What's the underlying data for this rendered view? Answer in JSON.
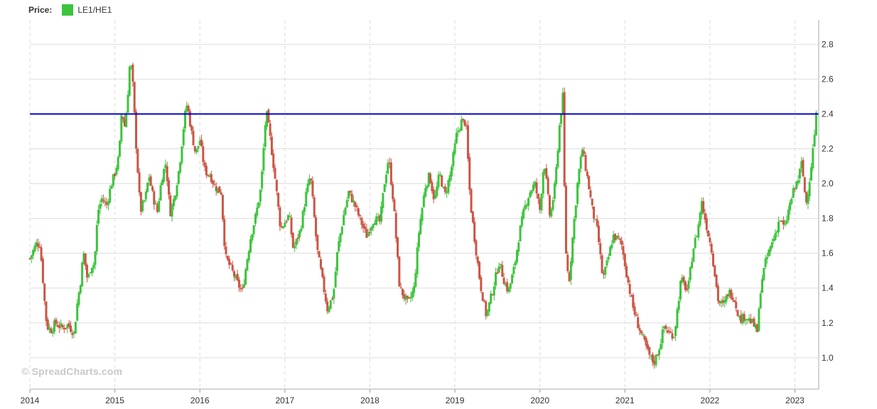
{
  "legend": {
    "title": "Price:",
    "series_label": "LE1/HE1"
  },
  "watermark": "© SpreadCharts.com",
  "colors": {
    "up": "#3cc43c",
    "down": "#cc5544",
    "reference_line": "#0000cc",
    "grid": "#dddddd"
  },
  "chart_data": {
    "type": "candlestick",
    "title": "",
    "xlabel": "",
    "ylabel": "",
    "series_name": "LE1/HE1",
    "x_ticks": [
      "2014",
      "2015",
      "2016",
      "2017",
      "2018",
      "2019",
      "2020",
      "2021",
      "2022",
      "2023"
    ],
    "y_ticks": [
      "1.0",
      "1.2",
      "1.4",
      "1.6",
      "1.8",
      "2.0",
      "2.2",
      "2.4",
      "2.6",
      "2.8"
    ],
    "ylim": [
      0.82,
      2.94
    ],
    "xlim": [
      2014.0,
      2023.28
    ],
    "reference_line": 2.4,
    "grid": true,
    "y_axis_side": "right",
    "points": [
      [
        2014.0,
        1.57
      ],
      [
        2014.08,
        1.66
      ],
      [
        2014.12,
        1.65
      ],
      [
        2014.15,
        1.47
      ],
      [
        2014.18,
        1.28
      ],
      [
        2014.2,
        1.18
      ],
      [
        2014.25,
        1.16
      ],
      [
        2014.3,
        1.2
      ],
      [
        2014.38,
        1.17
      ],
      [
        2014.45,
        1.19
      ],
      [
        2014.52,
        1.14
      ],
      [
        2014.56,
        1.32
      ],
      [
        2014.6,
        1.45
      ],
      [
        2014.63,
        1.61
      ],
      [
        2014.68,
        1.44
      ],
      [
        2014.72,
        1.53
      ],
      [
        2014.76,
        1.54
      ],
      [
        2014.8,
        1.84
      ],
      [
        2014.85,
        1.92
      ],
      [
        2014.9,
        1.87
      ],
      [
        2014.96,
        2.0
      ],
      [
        2015.0,
        2.06
      ],
      [
        2015.05,
        2.16
      ],
      [
        2015.08,
        2.42
      ],
      [
        2015.12,
        2.32
      ],
      [
        2015.15,
        2.5
      ],
      [
        2015.18,
        2.72
      ],
      [
        2015.21,
        2.58
      ],
      [
        2015.25,
        2.22
      ],
      [
        2015.3,
        1.84
      ],
      [
        2015.36,
        1.92
      ],
      [
        2015.4,
        2.05
      ],
      [
        2015.45,
        1.92
      ],
      [
        2015.5,
        1.84
      ],
      [
        2015.55,
        2.03
      ],
      [
        2015.6,
        2.12
      ],
      [
        2015.65,
        1.83
      ],
      [
        2015.7,
        1.92
      ],
      [
        2015.76,
        2.1
      ],
      [
        2015.82,
        2.38
      ],
      [
        2015.85,
        2.46
      ],
      [
        2015.9,
        2.3
      ],
      [
        2015.95,
        2.17
      ],
      [
        2016.0,
        2.25
      ],
      [
        2016.06,
        2.07
      ],
      [
        2016.12,
        2.05
      ],
      [
        2016.18,
        1.98
      ],
      [
        2016.25,
        1.95
      ],
      [
        2016.3,
        1.58
      ],
      [
        2016.36,
        1.52
      ],
      [
        2016.45,
        1.42
      ],
      [
        2016.5,
        1.38
      ],
      [
        2016.56,
        1.58
      ],
      [
        2016.6,
        1.7
      ],
      [
        2016.66,
        1.82
      ],
      [
        2016.72,
        1.98
      ],
      [
        2016.78,
        2.42
      ],
      [
        2016.83,
        2.25
      ],
      [
        2016.88,
        2.05
      ],
      [
        2016.95,
        1.74
      ],
      [
        2017.05,
        1.82
      ],
      [
        2017.1,
        1.62
      ],
      [
        2017.18,
        1.73
      ],
      [
        2017.25,
        1.94
      ],
      [
        2017.3,
        2.05
      ],
      [
        2017.38,
        1.62
      ],
      [
        2017.45,
        1.42
      ],
      [
        2017.5,
        1.28
      ],
      [
        2017.57,
        1.36
      ],
      [
        2017.62,
        1.62
      ],
      [
        2017.7,
        1.84
      ],
      [
        2017.75,
        1.95
      ],
      [
        2017.82,
        1.88
      ],
      [
        2017.88,
        1.8
      ],
      [
        2017.96,
        1.7
      ],
      [
        2018.05,
        1.8
      ],
      [
        2018.12,
        1.78
      ],
      [
        2018.17,
        2.0
      ],
      [
        2018.22,
        2.15
      ],
      [
        2018.28,
        1.88
      ],
      [
        2018.35,
        1.4
      ],
      [
        2018.45,
        1.31
      ],
      [
        2018.52,
        1.4
      ],
      [
        2018.58,
        1.74
      ],
      [
        2018.65,
        1.98
      ],
      [
        2018.7,
        2.05
      ],
      [
        2018.76,
        1.9
      ],
      [
        2018.82,
        2.06
      ],
      [
        2018.88,
        1.93
      ],
      [
        2018.95,
        2.06
      ],
      [
        2019.02,
        2.28
      ],
      [
        2019.08,
        2.36
      ],
      [
        2019.13,
        2.35
      ],
      [
        2019.18,
        1.9
      ],
      [
        2019.24,
        1.65
      ],
      [
        2019.3,
        1.42
      ],
      [
        2019.37,
        1.24
      ],
      [
        2019.45,
        1.4
      ],
      [
        2019.52,
        1.55
      ],
      [
        2019.58,
        1.44
      ],
      [
        2019.63,
        1.38
      ],
      [
        2019.7,
        1.52
      ],
      [
        2019.76,
        1.72
      ],
      [
        2019.82,
        1.86
      ],
      [
        2019.88,
        1.95
      ],
      [
        2019.94,
        2.0
      ],
      [
        2020.0,
        1.85
      ],
      [
        2020.05,
        2.14
      ],
      [
        2020.12,
        1.8
      ],
      [
        2020.18,
        2.0
      ],
      [
        2020.23,
        2.33
      ],
      [
        2020.27,
        2.5
      ],
      [
        2020.3,
        1.65
      ],
      [
        2020.34,
        1.42
      ],
      [
        2020.39,
        1.72
      ],
      [
        2020.45,
        2.04
      ],
      [
        2020.5,
        2.2
      ],
      [
        2020.56,
        2.03
      ],
      [
        2020.62,
        1.84
      ],
      [
        2020.68,
        1.72
      ],
      [
        2020.74,
        1.45
      ],
      [
        2020.8,
        1.56
      ],
      [
        2020.86,
        1.7
      ],
      [
        2020.92,
        1.68
      ],
      [
        2020.96,
        1.65
      ],
      [
        2021.05,
        1.4
      ],
      [
        2021.1,
        1.28
      ],
      [
        2021.16,
        1.18
      ],
      [
        2021.22,
        1.1
      ],
      [
        2021.28,
        1.02
      ],
      [
        2021.34,
        0.97
      ],
      [
        2021.4,
        1.05
      ],
      [
        2021.46,
        1.18
      ],
      [
        2021.52,
        1.14
      ],
      [
        2021.58,
        1.13
      ],
      [
        2021.66,
        1.45
      ],
      [
        2021.74,
        1.38
      ],
      [
        2021.8,
        1.62
      ],
      [
        2021.86,
        1.74
      ],
      [
        2021.9,
        1.9
      ],
      [
        2021.95,
        1.78
      ],
      [
        2022.02,
        1.62
      ],
      [
        2022.1,
        1.32
      ],
      [
        2022.16,
        1.3
      ],
      [
        2022.22,
        1.38
      ],
      [
        2022.28,
        1.35
      ],
      [
        2022.35,
        1.22
      ],
      [
        2022.42,
        1.24
      ],
      [
        2022.5,
        1.2
      ],
      [
        2022.56,
        1.15
      ],
      [
        2022.6,
        1.42
      ],
      [
        2022.65,
        1.54
      ],
      [
        2022.7,
        1.62
      ],
      [
        2022.76,
        1.7
      ],
      [
        2022.82,
        1.8
      ],
      [
        2022.88,
        1.74
      ],
      [
        2022.93,
        1.86
      ],
      [
        2022.98,
        1.95
      ],
      [
        2023.04,
        2.03
      ],
      [
        2023.08,
        2.12
      ],
      [
        2023.13,
        1.88
      ],
      [
        2023.18,
        2.05
      ],
      [
        2023.23,
        2.28
      ],
      [
        2023.26,
        2.44
      ]
    ]
  }
}
